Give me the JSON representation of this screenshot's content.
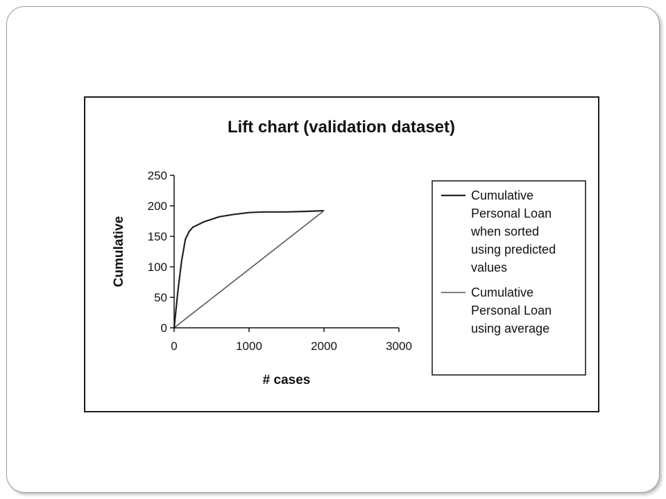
{
  "chart_data": {
    "type": "line",
    "title": "Lift chart (validation dataset)",
    "xlabel": "# cases",
    "ylabel": "Cumulative",
    "xlim": [
      0,
      3000
    ],
    "ylim": [
      0,
      250
    ],
    "x_ticks": [
      "0",
      "1000",
      "2000",
      "3000"
    ],
    "y_ticks": [
      "0",
      "50",
      "100",
      "150",
      "200",
      "250"
    ],
    "grid": false,
    "legend_position": "right",
    "series": [
      {
        "name": "Cumulative Personal Loan when sorted using predicted values",
        "legend_lines": [
          "Cumulative",
          "Personal Loan",
          "when sorted",
          "using predicted",
          "values"
        ],
        "color": "#222222",
        "x": [
          0,
          50,
          100,
          150,
          200,
          250,
          300,
          400,
          500,
          600,
          800,
          1000,
          1200,
          1500,
          1800,
          2000
        ],
        "y": [
          0,
          60,
          110,
          145,
          158,
          165,
          168,
          174,
          178,
          182,
          186,
          189,
          190,
          190,
          191,
          192
        ]
      },
      {
        "name": "Cumulative Personal Loan using average",
        "legend_lines": [
          "Cumulative",
          "Personal Loan",
          "using average"
        ],
        "color": "#555555",
        "x": [
          0,
          2000
        ],
        "y": [
          0,
          192
        ]
      }
    ]
  }
}
